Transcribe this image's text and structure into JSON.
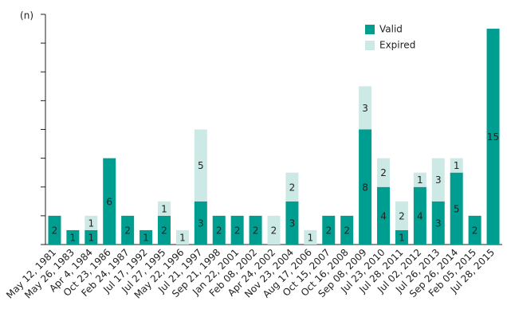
{
  "chart_data": {
    "type": "stacked_bar",
    "y_label": "(n)",
    "categories": [
      "May 12, 1981",
      "May 26, 1983",
      "Apr 4, 1984",
      "Oct 23, 1986",
      "Feb 24, 1987",
      "Jul 17, 1992",
      "Jul 27, 1995",
      "May 22, 1996",
      "Jul 21, 1997",
      "Sep 21, 1998",
      "Jan 22, 2001",
      "Feb 08, 2002",
      "Apr 24, 2002",
      "Nov 23, 2004",
      "Aug 17, 2006",
      "Oct 15, 2007",
      "Oct 16, 2008",
      "Sep 08, 2009",
      "Jul 23, 2010",
      "Jul 28, 2011",
      "Jul 02, 2012",
      "Jul 26, 2013",
      "Sep 26, 2014",
      "Feb 05, 2015",
      "Jul 28, 2015"
    ],
    "series": [
      {
        "name": "Valid",
        "color": "#009e91",
        "values": [
          2,
          1,
          1,
          6,
          2,
          1,
          2,
          null,
          3,
          2,
          2,
          2,
          null,
          3,
          null,
          2,
          2,
          8,
          4,
          1,
          4,
          3,
          5,
          2,
          15
        ]
      },
      {
        "name": "Expired",
        "color": "#cde9e6",
        "values": [
          null,
          null,
          1,
          null,
          null,
          null,
          1,
          1,
          5,
          null,
          null,
          null,
          2,
          2,
          1,
          null,
          null,
          3,
          2,
          2,
          1,
          3,
          1,
          null,
          null
        ]
      }
    ],
    "ylim": [
      0,
      16
    ],
    "yticks": [
      0,
      2,
      4,
      6,
      8,
      10,
      12,
      14,
      16
    ],
    "legend": "top-right"
  }
}
